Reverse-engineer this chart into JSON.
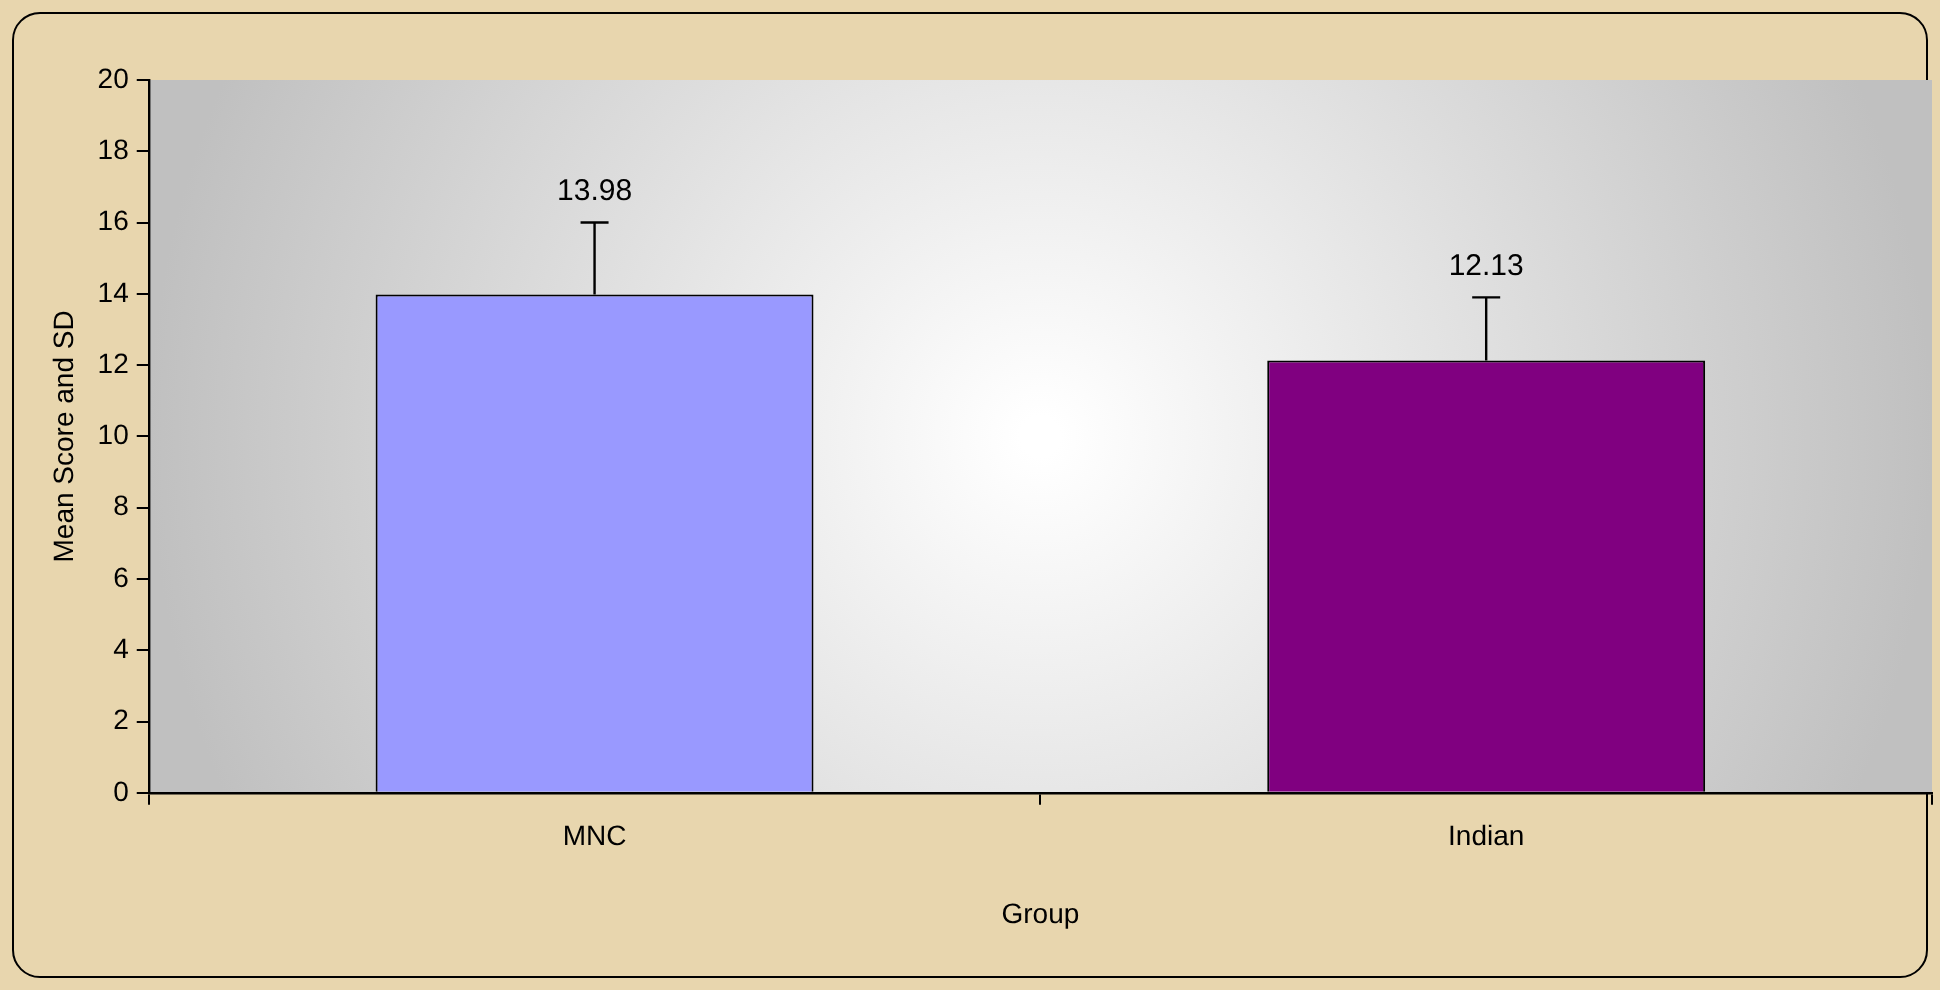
{
  "chart_data": {
    "type": "bar",
    "xlabel": "Group",
    "ylabel": "Mean Score and SD",
    "categories": [
      "MNC",
      "Indian"
    ],
    "values": [
      13.98,
      12.13
    ],
    "colors": [
      "#9999ff",
      "#800080"
    ],
    "errors": [
      [
        13.98,
        16.0
      ],
      [
        12.13,
        13.9
      ]
    ],
    "data_labels": true,
    "ylim": [
      0,
      20
    ],
    "yticks": [
      0,
      2,
      4,
      6,
      8,
      10,
      12,
      14,
      16,
      18,
      20
    ],
    "grid": false,
    "legend": false
  }
}
